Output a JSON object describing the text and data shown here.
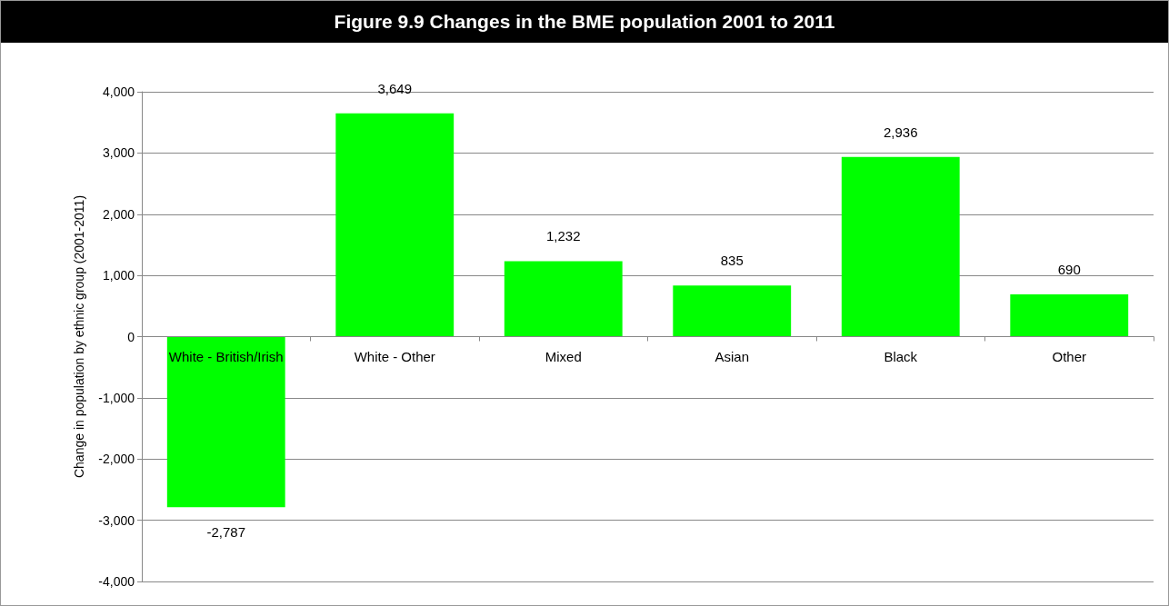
{
  "chart_data": {
    "type": "bar",
    "title": "Figure 9.9 Changes in the BME population 2001 to 2011",
    "ylabel": "Change in population by ethnic group (2001-2011)",
    "categories": [
      "White - British/Irish",
      "White - Other",
      "Mixed",
      "Asian",
      "Black",
      "Other"
    ],
    "values": [
      -2787,
      3649,
      1232,
      835,
      2936,
      690
    ],
    "value_labels": [
      "-2,787",
      "3,649",
      "1,232",
      "835",
      "2,936",
      "690"
    ],
    "color": "#00ff00",
    "ylim": [
      -4000,
      4000
    ],
    "yticks": [
      {
        "value": -4000,
        "label": "-4,000"
      },
      {
        "value": -3000,
        "label": "-3,000"
      },
      {
        "value": -2000,
        "label": "-2,000"
      },
      {
        "value": -1000,
        "label": "-1,000"
      },
      0,
      {
        "value": 1000,
        "label": "1,000"
      },
      {
        "value": 2000,
        "label": "2,000"
      },
      {
        "value": 3000,
        "label": "3,000"
      },
      {
        "value": 4000,
        "label": "4,000"
      }
    ],
    "grid": "y"
  }
}
